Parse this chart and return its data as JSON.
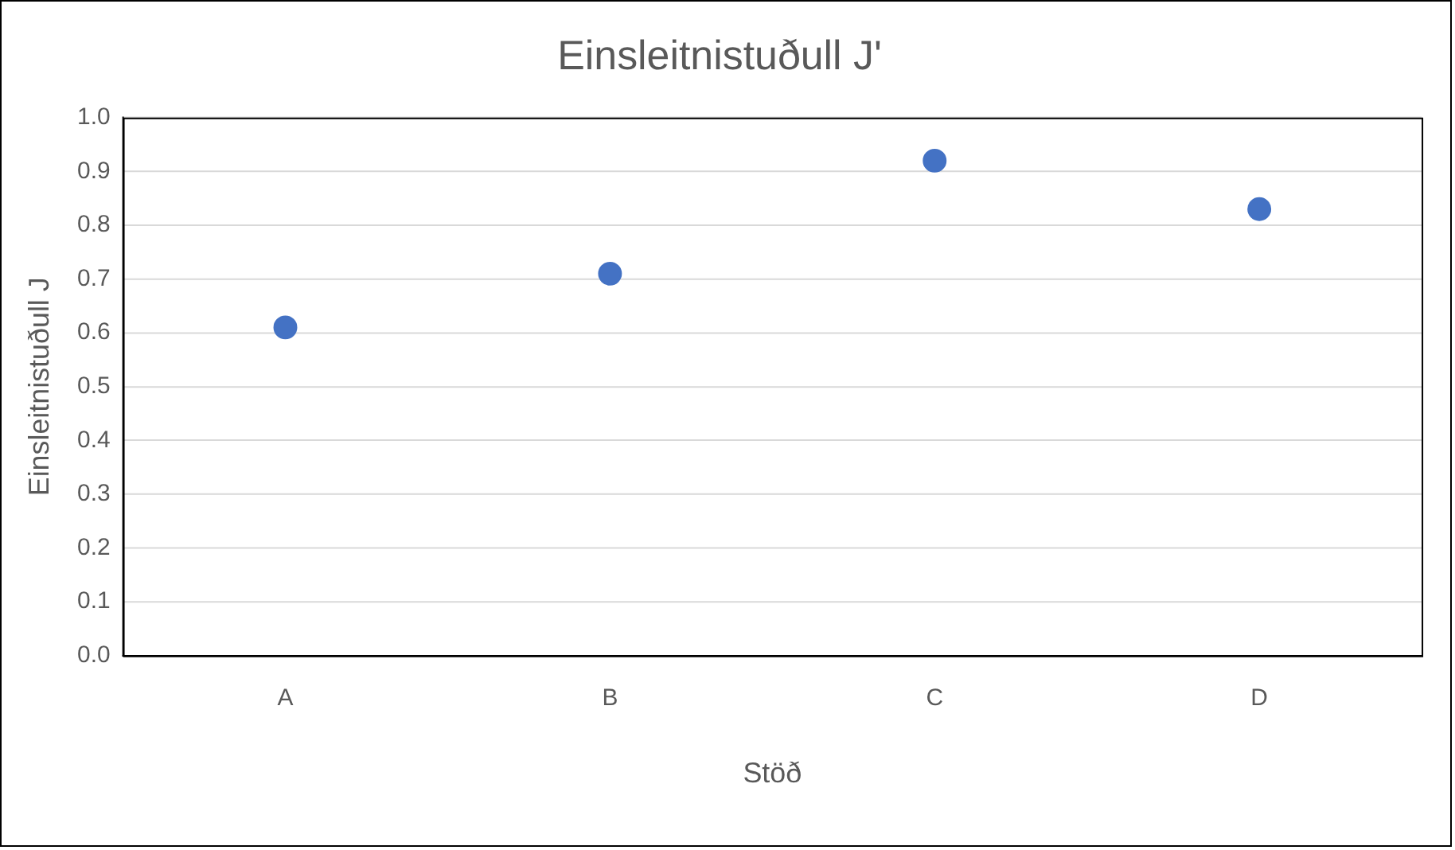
{
  "chart_data": {
    "type": "scatter",
    "title": "Einsleitnistuðull J'",
    "xlabel": "Stöð",
    "ylabel": "Einsleitnistuðull J",
    "categories": [
      "A",
      "B",
      "C",
      "D"
    ],
    "series": [
      {
        "color": "#4472c4",
        "values": [
          0.61,
          0.71,
          0.92,
          0.83
        ]
      }
    ],
    "ylim": [
      0,
      1
    ],
    "yticks": [
      {
        "value": 0,
        "label": "0.0"
      },
      {
        "value": 0.1,
        "label": "0.1"
      },
      {
        "value": 0.2,
        "label": "0.2"
      },
      {
        "value": 0.3,
        "label": "0.3"
      },
      {
        "value": 0.4,
        "label": "0.4"
      },
      {
        "value": 0.5,
        "label": "0.5"
      },
      {
        "value": 0.6,
        "label": "0.6"
      },
      {
        "value": 0.7,
        "label": "0.7"
      },
      {
        "value": 0.8,
        "label": "0.8"
      },
      {
        "value": 0.9,
        "label": "0.9"
      },
      {
        "value": 1,
        "label": "1.0"
      }
    ],
    "grid": "y",
    "legend": false,
    "marker": "circle"
  }
}
